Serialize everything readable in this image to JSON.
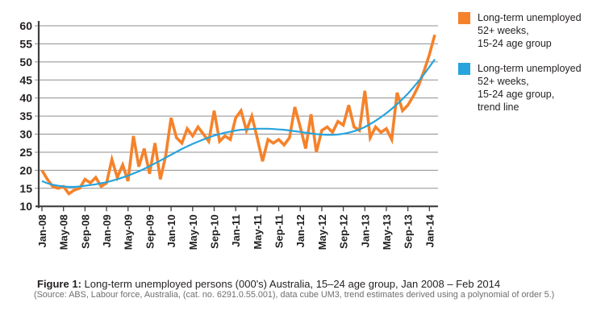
{
  "figure": {
    "caption_label": "Figure 1:",
    "caption_text": " Long-term unemployed persons (000's) Australia, 15–24 age group, Jan 2008 – Feb 2014",
    "source_text": "(Source: ABS, Labour force, Australia, (cat. no. 6291.0.55.001), data cube UM3, trend estimates derived using a polynomial of order 5.)"
  },
  "legend": {
    "items": [
      {
        "color": "#F5822A",
        "lines": [
          "Long-term unemployed",
          "52+ weeks,",
          "15-24 age group"
        ]
      },
      {
        "color": "#27A4DC",
        "lines": [
          "Long-term unemployed",
          "52+ weeks,",
          "15-24 age group,",
          "trend line"
        ]
      }
    ]
  },
  "chart_data": {
    "type": "line",
    "title": "",
    "xlabel": "",
    "ylabel": "",
    "x_start": "Jan-08",
    "x_end": "Feb-14",
    "x_tick_labels": [
      "Jan-08",
      "May-08",
      "Sep-08",
      "Jan-09",
      "May-09",
      "Sep-09",
      "Jan-10",
      "May-10",
      "Sep-10",
      "Jan-11",
      "May-11",
      "Sep-11",
      "Jan-12",
      "May-12",
      "Sep-12",
      "Jan-13",
      "May-13",
      "Sep-13",
      "Jan-14"
    ],
    "x_tick_every_n_months": 4,
    "y_tick_labels": [
      "60",
      "55",
      "50",
      "45",
      "40",
      "35",
      "30",
      "25",
      "20",
      "15",
      "10"
    ],
    "ylim": [
      10,
      60
    ],
    "ytick_step": 5,
    "grid": "horizontal",
    "legend_position": "right",
    "colors": {
      "axis": "#3f3f3f",
      "grid": "#8f8f8f",
      "label": "#231f20"
    },
    "series": [
      {
        "name": "Long-term unemployed 52+ weeks, 15-24 age group",
        "color": "#F5822A",
        "stroke_width": 3.6,
        "values": [
          20,
          17.5,
          15.5,
          15,
          15.5,
          13.5,
          14.5,
          15,
          17.5,
          16.5,
          18,
          15.5,
          16.5,
          23,
          18,
          21.5,
          17,
          29.5,
          21,
          26,
          19,
          27.5,
          17.5,
          24,
          34.5,
          29,
          27.5,
          31.5,
          29.5,
          32,
          30,
          28,
          36.5,
          28,
          29.5,
          28.5,
          34.5,
          36.5,
          31,
          35,
          29,
          22.5,
          28.5,
          27.5,
          28.5,
          27,
          29,
          37.5,
          32,
          26,
          35.5,
          25,
          31,
          32,
          30.5,
          33.5,
          32.5,
          38,
          32,
          31,
          42,
          29,
          32,
          30.5,
          31.5,
          28.5,
          41.5,
          36.5,
          38,
          40.5,
          43.5,
          47.5,
          52,
          57.5
        ]
      },
      {
        "name": "Long-term unemployed 52+ weeks, 15-24 age group, trend line",
        "color": "#27A4DC",
        "stroke_width": 2.2,
        "values": [
          17,
          16.4,
          16,
          15.7,
          15.5,
          15.4,
          15.4,
          15.5,
          15.7,
          15.9,
          16.1,
          16.4,
          16.7,
          17.1,
          17.5,
          18,
          18.5,
          19.1,
          19.7,
          20.4,
          21.1,
          21.9,
          22.7,
          23.5,
          24.3,
          25.1,
          25.9,
          26.6,
          27.3,
          27.9,
          28.5,
          29.1,
          29.6,
          30,
          30.4,
          30.7,
          31,
          31.2,
          31.3,
          31.4,
          31.5,
          31.5,
          31.5,
          31.4,
          31.3,
          31.2,
          31,
          30.8,
          30.6,
          30.4,
          30.2,
          30,
          29.9,
          29.8,
          29.8,
          29.9,
          30.1,
          30.4,
          30.8,
          31.3,
          32,
          32.8,
          33.7,
          34.7,
          35.8,
          37,
          38.3,
          39.7,
          41.2,
          42.9,
          44.7,
          46.6,
          48.6,
          50.7
        ]
      }
    ]
  }
}
